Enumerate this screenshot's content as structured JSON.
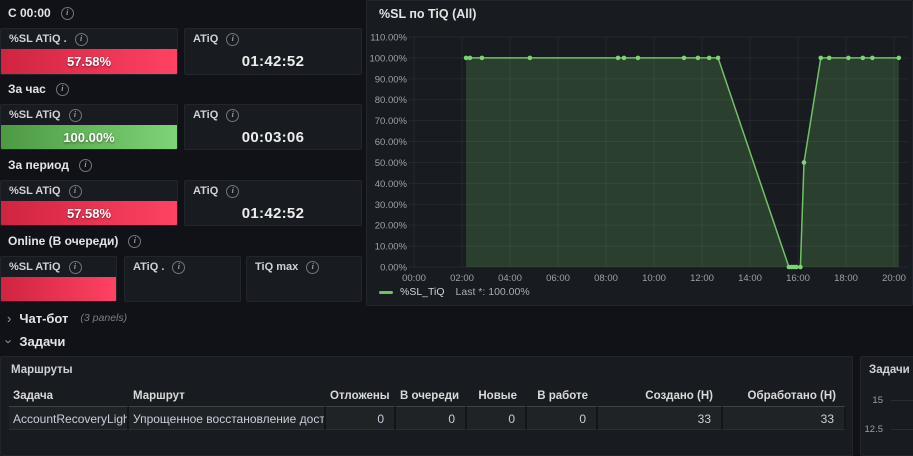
{
  "icons": {
    "info": "i",
    "chevron": "›"
  },
  "sections": [
    {
      "label": "С 00:00",
      "panels": [
        {
          "title": "%SL ATiQ .",
          "value": "57.58%"
        },
        {
          "title": "ATiQ",
          "value": "01:42:52"
        }
      ]
    },
    {
      "label": "За час",
      "panels": [
        {
          "title": "%SL ATiQ",
          "value": "100.00%"
        },
        {
          "title": "ATiQ",
          "value": "00:03:06"
        }
      ]
    },
    {
      "label": "За период",
      "panels": [
        {
          "title": "%SL ATiQ",
          "value": "57.58%"
        },
        {
          "title": "ATiQ",
          "value": "01:42:52"
        }
      ]
    },
    {
      "label": "Online (В очереди)",
      "panels": [
        {
          "title": "%SL ATiQ",
          "value": ""
        },
        {
          "title": "ATiQ .",
          "value": ""
        },
        {
          "title": "TiQ max",
          "value": ""
        }
      ]
    }
  ],
  "rows_ui": {
    "chatbot": {
      "label": "Чат-бот",
      "meta": "(3 panels)",
      "collapsed": true
    },
    "tasks": {
      "label": "Задачи",
      "collapsed": false
    }
  },
  "table_panel": {
    "title": "Маршруты",
    "columns": [
      "Задача",
      "Маршрут",
      "Отложены",
      "В очереди",
      "Новые",
      "В работе",
      "Создано (Н)",
      "Обработано (Н)"
    ],
    "rows": [
      [
        "AccountRecoveryLight",
        "Упрощенное восстановление доступа",
        "0",
        "0",
        "0",
        "0",
        "33",
        "33"
      ]
    ]
  },
  "mini_panel": {
    "title": "Задачи (All",
    "y_ticks": [
      "15",
      "12.5"
    ]
  },
  "colors": {
    "dashboard_bg": "#111217",
    "panel_bg": "#181b1f",
    "red_gradient": [
      "#cf2440",
      "#ff4263"
    ],
    "green_gradient": [
      "#4c9a44",
      "#7fd377"
    ],
    "chart_line": "#73bf69"
  },
  "chart_data": {
    "type": "area",
    "title": "%SL по TiQ (All)",
    "xlabel": "",
    "ylabel": "",
    "ylim": [
      0,
      110
    ],
    "grid": true,
    "legend_position": "bottom-left",
    "x_tick_hours": [
      0,
      2,
      4,
      6,
      8,
      10,
      12,
      14,
      16,
      18,
      20
    ],
    "x_tick_labels": [
      "00:00",
      "02:00",
      "04:00",
      "06:00",
      "08:00",
      "10:00",
      "12:00",
      "14:00",
      "16:00",
      "18:00",
      "20:00"
    ],
    "y_tick_values": [
      110,
      100,
      90,
      80,
      70,
      60,
      50,
      40,
      30,
      20,
      10,
      0
    ],
    "y_tick_labels": [
      "110.00%",
      "100.00%",
      "90.00%",
      "80.00%",
      "70.00%",
      "60.00%",
      "50.00%",
      "40.00%",
      "30.00%",
      "20.00%",
      "10.00%",
      "0.00%"
    ],
    "series": [
      {
        "name": "%SL_TiQ",
        "points": [
          [
            2.17,
            100
          ],
          [
            2.33,
            100
          ],
          [
            2.83,
            100
          ],
          [
            4.83,
            100
          ],
          [
            8.5,
            100
          ],
          [
            8.75,
            100
          ],
          [
            9.33,
            100
          ],
          [
            11.25,
            100
          ],
          [
            11.83,
            100
          ],
          [
            12.3,
            100
          ],
          [
            12.67,
            100
          ],
          [
            15.62,
            0
          ],
          [
            15.73,
            0
          ],
          [
            15.83,
            0
          ],
          [
            15.93,
            0
          ],
          [
            16.1,
            0
          ],
          [
            16.25,
            50
          ],
          [
            16.95,
            100
          ],
          [
            17.3,
            100
          ],
          [
            18.1,
            100
          ],
          [
            18.7,
            100
          ],
          [
            19.1,
            100
          ],
          [
            20.2,
            100
          ]
        ]
      }
    ],
    "legend_stat": "Last *: 100.00%"
  }
}
